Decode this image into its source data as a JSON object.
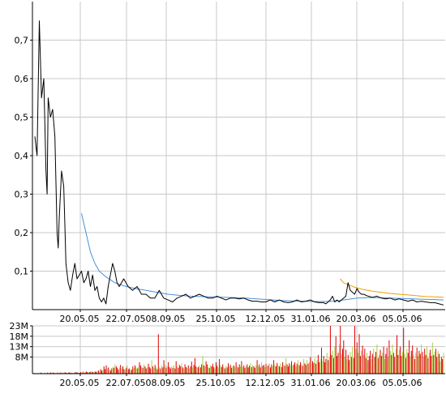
{
  "colors": {
    "background": "#ffffff",
    "grid": "#c8c8c8",
    "axis": "#000000",
    "price": "#000000",
    "ma_long": "#4a90d9",
    "ma_short": "#f0a000",
    "volume_up": "#a8d040",
    "volume_down": "#e00000"
  },
  "chart_data": [
    {
      "type": "line",
      "ylim": [
        0,
        0.8
      ],
      "y_ticks": [
        "0,1",
        "0,2",
        "0,3",
        "0,4",
        "0,5",
        "0,6",
        "0,7"
      ],
      "x_ticks": [
        "20.05.05",
        "22.07.05",
        "08.09.05",
        "25.10.05",
        "12.12.05",
        "31.01.06",
        "20.03.06",
        "05.05.06"
      ],
      "grid": true,
      "series": [
        {
          "role": "price",
          "points": [
            [
              0,
              0.45
            ],
            [
              2,
              0.4
            ],
            [
              4,
              0.75
            ],
            [
              6,
              0.55
            ],
            [
              8,
              0.6
            ],
            [
              10,
              0.36
            ],
            [
              11,
              0.3
            ],
            [
              12,
              0.55
            ],
            [
              14,
              0.5
            ],
            [
              16,
              0.52
            ],
            [
              18,
              0.45
            ],
            [
              20,
              0.2
            ],
            [
              21,
              0.16
            ],
            [
              22,
              0.24
            ],
            [
              24,
              0.36
            ],
            [
              26,
              0.32
            ],
            [
              27,
              0.22
            ],
            [
              28,
              0.12
            ],
            [
              30,
              0.07
            ],
            [
              32,
              0.05
            ],
            [
              34,
              0.09
            ],
            [
              36,
              0.12
            ],
            [
              38,
              0.08
            ],
            [
              40,
              0.09
            ],
            [
              42,
              0.1
            ],
            [
              44,
              0.07
            ],
            [
              46,
              0.08
            ],
            [
              48,
              0.1
            ],
            [
              50,
              0.06
            ],
            [
              52,
              0.09
            ],
            [
              54,
              0.05
            ],
            [
              56,
              0.06
            ],
            [
              58,
              0.03
            ],
            [
              60,
              0.02
            ],
            [
              62,
              0.03
            ],
            [
              64,
              0.015
            ],
            [
              66,
              0.06
            ],
            [
              68,
              0.09
            ],
            [
              70,
              0.12
            ],
            [
              72,
              0.1
            ],
            [
              74,
              0.07
            ],
            [
              76,
              0.06
            ],
            [
              80,
              0.08
            ],
            [
              84,
              0.06
            ],
            [
              88,
              0.05
            ],
            [
              92,
              0.06
            ],
            [
              96,
              0.04
            ],
            [
              100,
              0.04
            ],
            [
              104,
              0.03
            ],
            [
              108,
              0.03
            ],
            [
              112,
              0.05
            ],
            [
              116,
              0.03
            ],
            [
              120,
              0.025
            ],
            [
              124,
              0.02
            ],
            [
              128,
              0.03
            ],
            [
              132,
              0.035
            ],
            [
              136,
              0.04
            ],
            [
              140,
              0.03
            ],
            [
              144,
              0.035
            ],
            [
              148,
              0.04
            ],
            [
              152,
              0.035
            ],
            [
              156,
              0.03
            ],
            [
              160,
              0.03
            ],
            [
              164,
              0.035
            ],
            [
              168,
              0.03
            ],
            [
              172,
              0.025
            ],
            [
              176,
              0.03
            ],
            [
              180,
              0.03
            ],
            [
              184,
              0.028
            ],
            [
              188,
              0.03
            ],
            [
              192,
              0.025
            ],
            [
              196,
              0.022
            ],
            [
              200,
              0.022
            ],
            [
              204,
              0.02
            ],
            [
              208,
              0.02
            ],
            [
              212,
              0.025
            ],
            [
              216,
              0.02
            ],
            [
              220,
              0.025
            ],
            [
              224,
              0.02
            ],
            [
              228,
              0.018
            ],
            [
              232,
              0.02
            ],
            [
              236,
              0.025
            ],
            [
              240,
              0.02
            ],
            [
              244,
              0.022
            ],
            [
              248,
              0.025
            ],
            [
              252,
              0.02
            ],
            [
              256,
              0.018
            ],
            [
              260,
              0.018
            ],
            [
              262,
              0.015
            ],
            [
              264,
              0.02
            ],
            [
              266,
              0.025
            ],
            [
              268,
              0.035
            ],
            [
              270,
              0.02
            ],
            [
              272,
              0.025
            ],
            [
              274,
              0.02
            ],
            [
              276,
              0.025
            ],
            [
              278,
              0.03
            ],
            [
              280,
              0.035
            ],
            [
              282,
              0.07
            ],
            [
              284,
              0.05
            ],
            [
              286,
              0.045
            ],
            [
              288,
              0.04
            ],
            [
              290,
              0.055
            ],
            [
              292,
              0.045
            ],
            [
              294,
              0.04
            ],
            [
              296,
              0.04
            ],
            [
              300,
              0.035
            ],
            [
              304,
              0.032
            ],
            [
              308,
              0.035
            ],
            [
              312,
              0.03
            ],
            [
              316,
              0.028
            ],
            [
              320,
              0.03
            ],
            [
              324,
              0.025
            ],
            [
              328,
              0.028
            ],
            [
              332,
              0.025
            ],
            [
              336,
              0.022
            ],
            [
              340,
              0.025
            ],
            [
              344,
              0.02
            ],
            [
              348,
              0.022
            ],
            [
              352,
              0.02
            ],
            [
              356,
              0.018
            ],
            [
              360,
              0.018
            ],
            [
              364,
              0.015
            ],
            [
              368,
              0.012
            ]
          ]
        },
        {
          "role": "moving-average-long",
          "points": [
            [
              42,
              0.25
            ],
            [
              46,
              0.2
            ],
            [
              50,
              0.15
            ],
            [
              54,
              0.12
            ],
            [
              58,
              0.1
            ],
            [
              64,
              0.085
            ],
            [
              72,
              0.07
            ],
            [
              80,
              0.062
            ],
            [
              90,
              0.055
            ],
            [
              100,
              0.05
            ],
            [
              110,
              0.045
            ],
            [
              120,
              0.04
            ],
            [
              130,
              0.037
            ],
            [
              140,
              0.035
            ],
            [
              150,
              0.034
            ],
            [
              160,
              0.033
            ],
            [
              170,
              0.032
            ],
            [
              180,
              0.031
            ],
            [
              190,
              0.03
            ],
            [
              200,
              0.028
            ],
            [
              210,
              0.026
            ],
            [
              220,
              0.024
            ],
            [
              230,
              0.023
            ],
            [
              240,
              0.022
            ],
            [
              250,
              0.021
            ],
            [
              260,
              0.021
            ],
            [
              270,
              0.022
            ],
            [
              280,
              0.026
            ],
            [
              290,
              0.03
            ],
            [
              300,
              0.031
            ],
            [
              310,
              0.031
            ],
            [
              320,
              0.03
            ],
            [
              330,
              0.029
            ],
            [
              340,
              0.028
            ],
            [
              350,
              0.027
            ],
            [
              360,
              0.026
            ],
            [
              368,
              0.025
            ]
          ]
        },
        {
          "role": "moving-average-short",
          "points": [
            [
              275,
              0.08
            ],
            [
              278,
              0.07
            ],
            [
              282,
              0.065
            ],
            [
              288,
              0.058
            ],
            [
              296,
              0.052
            ],
            [
              304,
              0.048
            ],
            [
              312,
              0.045
            ],
            [
              320,
              0.042
            ],
            [
              328,
              0.04
            ],
            [
              336,
              0.038
            ],
            [
              344,
              0.036
            ],
            [
              352,
              0.034
            ],
            [
              360,
              0.033
            ],
            [
              368,
              0.032
            ]
          ]
        }
      ]
    },
    {
      "type": "bar",
      "ylim": [
        0,
        23
      ],
      "y_ticks": [
        "8M",
        "13M",
        "18M",
        "23M"
      ],
      "y_tick_values": [
        8,
        13,
        18,
        23
      ],
      "x_ticks": [
        "20.05.05",
        "22.07.05",
        "08.09.05",
        "25.10.05",
        "12.12.05",
        "31.01.06",
        "20.03.06",
        "05.05.06"
      ],
      "grid": true,
      "volumes": [
        0.3,
        0.2,
        0.4,
        0.2,
        0.3,
        0.2,
        0.5,
        0.3,
        0.2,
        0.4,
        0.3,
        0.2,
        0.5,
        0.3,
        0.4,
        0.6,
        0.3,
        0.5,
        0.4,
        0.3,
        0.2,
        0.5,
        0.4,
        0.3,
        0.6,
        0.4,
        0.3,
        0.5,
        0.7,
        0.4,
        0.3,
        0.5,
        0.6,
        0.4,
        0.5,
        0.3,
        0.4,
        0.6,
        0.8,
        0.5,
        0.6,
        0.4,
        0.7,
        0.5,
        0.9,
        0.6,
        0.5,
        1.0,
        0.8,
        0.6,
        0.7,
        0.9,
        1.2,
        0.8,
        0.7,
        1.0,
        0.9,
        1.2,
        1.5,
        1.0,
        2.2,
        1.5,
        1.8,
        3.5,
        2.2,
        4.0,
        2.5,
        3.0,
        2.0,
        1.5,
        2.5,
        3.2,
        2.8,
        4.5,
        3.5,
        2.8,
        2.0,
        3.0,
        4.2,
        2.5,
        3.5,
        2.2,
        1.8,
        2.8,
        3.8,
        2.2,
        2.5,
        1.5,
        2.0,
        3.5,
        2.8,
        4.0,
        3.2,
        2.5,
        3.0,
        5.5,
        4.0,
        3.2,
        2.8,
        4.5,
        3.5,
        2.5,
        3.0,
        4.8,
        3.2,
        2.5,
        6.5,
        3.5,
        2.8,
        4.2,
        3.0,
        2.2,
        19.0,
        3.0,
        2.5,
        4.0,
        3.0,
        6.5,
        4.0,
        2.8,
        3.5,
        5.5,
        3.2,
        2.5,
        3.5,
        2.8,
        4.0,
        2.5,
        6.0,
        3.5,
        2.8,
        4.2,
        3.5,
        5.0,
        3.0,
        2.5,
        4.5,
        3.2,
        2.8,
        4.0,
        2.5,
        3.5,
        5.8,
        3.0,
        4.2,
        7.5,
        3.5,
        2.8,
        3.2,
        4.0,
        3.0,
        4.5,
        8.5,
        4.0,
        3.5,
        6.0,
        4.5,
        3.0,
        2.8,
        4.0,
        3.5,
        4.8,
        3.2,
        2.5,
        5.5,
        3.8,
        3.0,
        7.0,
        4.0,
        3.2,
        4.5,
        3.0,
        2.5,
        3.8,
        3.0,
        5.0,
        3.5,
        4.2,
        2.8,
        3.5,
        4.0,
        3.2,
        5.5,
        3.8,
        3.0,
        4.5,
        3.5,
        6.0,
        3.2,
        4.0,
        2.8,
        3.5,
        4.5,
        3.0,
        3.8,
        5.0,
        3.2,
        4.2,
        3.5,
        2.8,
        4.0,
        6.5,
        3.5,
        4.5,
        3.0,
        5.5,
        3.8,
        4.2,
        3.2,
        4.8,
        3.5,
        4.0,
        5.0,
        3.0,
        4.5,
        3.8,
        6.5,
        4.2,
        3.5,
        5.2,
        4.0,
        3.5,
        4.8,
        3.2,
        5.5,
        4.0,
        3.8,
        7.5,
        4.5,
        3.5,
        5.0,
        4.2,
        6.0,
        3.8,
        4.5,
        5.5,
        3.5,
        4.8,
        6.5,
        4.0,
        5.5,
        4.5,
        3.8,
        7.0,
        5.0,
        4.2,
        6.5,
        4.8,
        5.5,
        8.0,
        4.5,
        6.0,
        5.2,
        7.5,
        4.8,
        6.5,
        9.0,
        5.5,
        7.0,
        12.5,
        6.0,
        8.5,
        5.5,
        7.0,
        10.0,
        6.5,
        8.0,
        23.0,
        9.0,
        11.0,
        7.5,
        13.0,
        18.0,
        8.5,
        10.0,
        14.0,
        23.0,
        9.5,
        12.0,
        16.0,
        8.0,
        11.5,
        7.0,
        9.0,
        6.5,
        10.5,
        8.0,
        13.0,
        7.5,
        23.0,
        12.0,
        15.0,
        10.0,
        19.0,
        8.5,
        11.0,
        13.5,
        9.0,
        12.0,
        7.5,
        10.0,
        6.5,
        8.5,
        11.0,
        7.0,
        9.5,
        12.0,
        8.0,
        10.5,
        14.0,
        7.5,
        9.0,
        11.5,
        8.5,
        10.0,
        13.0,
        7.0,
        9.5,
        12.5,
        8.0,
        16.0,
        11.0,
        9.0,
        14.0,
        10.0,
        8.0,
        12.0,
        18.5,
        9.0,
        11.5,
        13.0,
        8.5,
        10.5,
        22.0,
        9.5,
        7.5,
        12.0,
        10.0,
        16.0,
        8.0,
        11.0,
        13.5,
        9.0,
        7.0,
        10.0,
        12.5,
        8.5,
        11.0,
        9.5,
        14.0,
        10.5,
        8.0,
        12.0,
        9.0,
        13.0,
        7.5,
        10.0,
        11.5,
        8.5,
        15.0,
        9.0,
        10.5,
        12.0,
        8.0,
        11.0,
        9.5,
        6.0,
        8.0,
        7.0,
        10.0
      ],
      "up_flags": "0010100011010010100010100101001000101000100101000100101001010010001010010100010100101001001010100101001000101010010100101000101001000101001010010001010010100101000100101001010010010101001010010001010010100100101010010100101001010001010010100101001010100101001010001010010100010100101001010010100101001000101001010010100101010010010010101001001010100101001010010100101001"
    }
  ]
}
